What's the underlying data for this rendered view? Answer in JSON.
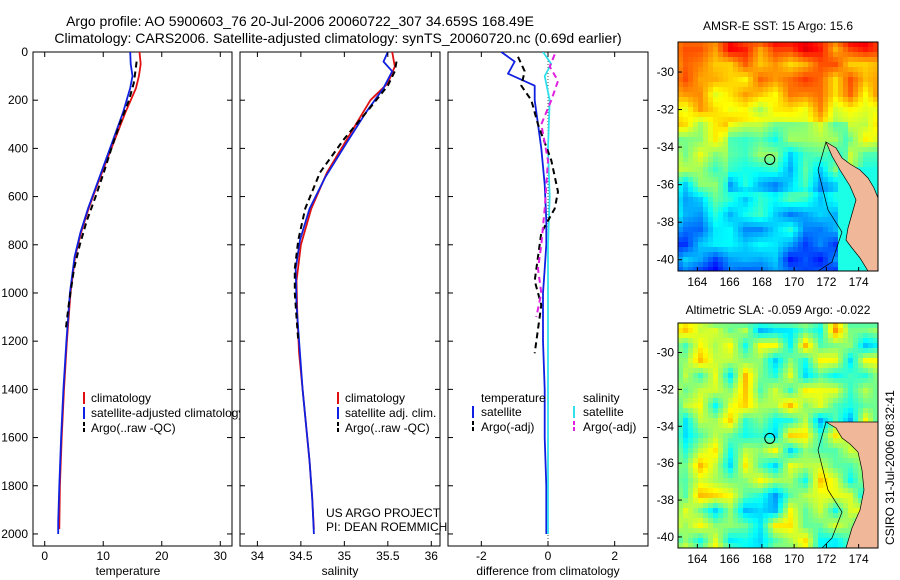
{
  "title_line1": "Argo profile: AO 5900603_76 20-Jul-2006 20060722_307 34.659S 168.49E",
  "title_line2": "Climatology: CARS2006. Satellite-adjusted climatology: synTS_20060720.nc (0.69d earlier)",
  "side_label": "CSIRO 31-Jul-2006 08:32:41",
  "colors": {
    "climatology": "#e01010",
    "satellite": "#1020e0",
    "argo": "#000000",
    "sat_salinity_diff": "#30e0ee",
    "argo_salinity_diff": "#e020e0",
    "land": "#f0b898"
  },
  "chart_data": [
    {
      "type": "line",
      "name": "temperature-profile",
      "xlabel": "temperature",
      "xlim": [
        -2,
        32
      ],
      "ylim": [
        0,
        2050
      ],
      "xticks": [
        0,
        10,
        20,
        30
      ],
      "yticks": [
        0,
        200,
        400,
        600,
        800,
        1000,
        1200,
        1400,
        1600,
        1800,
        2000
      ],
      "series": [
        {
          "name": "climatology",
          "color": "#e01010",
          "x": [
            16.2,
            16.4,
            16.1,
            15.6,
            13.8,
            12.2,
            10.6,
            9.0,
            7.5,
            6.2,
            5.2,
            4.4,
            3.8,
            3.3,
            2.9,
            2.6,
            2.5
          ],
          "y": [
            0,
            50,
            100,
            150,
            250,
            350,
            450,
            550,
            650,
            750,
            850,
            1000,
            1200,
            1400,
            1600,
            1800,
            1980
          ]
        },
        {
          "name": "satellite-adjusted climatology",
          "color": "#1020e0",
          "x": [
            14.6,
            14.7,
            15.0,
            14.6,
            13.4,
            11.9,
            10.4,
            8.9,
            7.4,
            6.1,
            5.1,
            4.3,
            3.7,
            3.2,
            2.8,
            2.5,
            2.3,
            2.3
          ],
          "y": [
            0,
            50,
            100,
            150,
            250,
            350,
            450,
            550,
            650,
            750,
            850,
            1000,
            1200,
            1400,
            1600,
            1800,
            1950,
            2000
          ]
        },
        {
          "name": "Argo(..raw -QC)",
          "color": "#000000",
          "dashed": true,
          "x": [
            15.7,
            15.5,
            15.2,
            14.4,
            12.8,
            11.4,
            10.1,
            8.7,
            7.2,
            6.0,
            5.0,
            4.1,
            3.6
          ],
          "y": [
            40,
            80,
            130,
            200,
            300,
            400,
            500,
            600,
            700,
            800,
            900,
            1050,
            1150
          ]
        }
      ],
      "legend": [
        "climatology",
        "satellite-adjusted climatology",
        "Argo(..raw -QC)"
      ]
    },
    {
      "type": "line",
      "name": "salinity-profile",
      "xlabel": "salinity",
      "xlim": [
        33.8,
        36.1
      ],
      "ylim": [
        0,
        2050
      ],
      "xticks": [
        34,
        34.5,
        35,
        35.5,
        36
      ],
      "series": [
        {
          "name": "climatology",
          "color": "#e01010",
          "x": [
            35.55,
            35.58,
            35.5,
            35.3,
            35.05,
            34.8,
            34.62,
            34.5,
            34.45,
            34.46,
            34.48,
            34.52,
            34.56,
            34.6,
            34.63,
            34.65
          ],
          "y": [
            0,
            60,
            130,
            200,
            350,
            500,
            650,
            800,
            950,
            1100,
            1250,
            1400,
            1550,
            1700,
            1850,
            1980
          ]
        },
        {
          "name": "satellite adj. clim.",
          "color": "#1020e0",
          "x": [
            35.5,
            35.45,
            35.55,
            35.45,
            35.25,
            35.02,
            34.78,
            34.6,
            34.49,
            34.44,
            34.45,
            34.48,
            34.52,
            34.56,
            34.6,
            34.63,
            34.65
          ],
          "y": [
            0,
            40,
            80,
            150,
            250,
            380,
            520,
            650,
            780,
            900,
            1050,
            1200,
            1400,
            1550,
            1700,
            1850,
            2000
          ]
        },
        {
          "name": "Argo(..raw -QC)",
          "color": "#000000",
          "dashed": true,
          "x": [
            35.6,
            35.58,
            35.5,
            35.3,
            35.0,
            34.72,
            34.55,
            34.47,
            34.43,
            34.43,
            34.45,
            34.47
          ],
          "y": [
            40,
            80,
            140,
            230,
            360,
            500,
            650,
            780,
            900,
            1000,
            1100,
            1200
          ]
        }
      ],
      "legend": [
        "climatology",
        "satellite adj. clim.",
        "Argo(..raw -QC)"
      ],
      "annotations": [
        "US ARGO PROJECT",
        "PI: DEAN ROEMMICH"
      ]
    },
    {
      "type": "line",
      "name": "difference-profile",
      "xlabel": "difference from climatology",
      "xlim": [
        -3,
        3
      ],
      "ylim": [
        0,
        2050
      ],
      "xticks": [
        -2,
        0,
        2
      ],
      "series": [
        {
          "name": "satellite temperature",
          "color": "#1020e0",
          "x": [
            -1.4,
            -1.0,
            -1.2,
            -0.4,
            -0.4,
            -0.3,
            -0.2,
            -0.1,
            -0.05,
            -0.05,
            -0.1,
            -0.15,
            -0.15,
            -0.1,
            -0.1,
            -0.05,
            -0.05
          ],
          "y": [
            0,
            40,
            90,
            140,
            200,
            300,
            400,
            550,
            700,
            800,
            900,
            1000,
            1200,
            1400,
            1600,
            1800,
            2000
          ]
        },
        {
          "name": "satellite salinity",
          "color": "#30e0ee",
          "x": [
            -0.15,
            0.1,
            -0.1,
            0.05,
            0.0,
            0.05,
            0.0,
            0.0,
            0.0,
            0.0,
            0.0,
            0.0
          ],
          "y": [
            0,
            50,
            100,
            200,
            400,
            600,
            800,
            1000,
            1200,
            1400,
            1700,
            2000
          ]
        },
        {
          "name": "Argo(-adj) temperature",
          "color": "#000000",
          "dashed": true,
          "x": [
            -0.9,
            -0.7,
            -0.8,
            -0.5,
            -0.3,
            0.1,
            0.3,
            0.2,
            -0.2,
            -0.3,
            -0.4,
            -0.2,
            -0.3,
            -0.4
          ],
          "y": [
            20,
            80,
            140,
            200,
            300,
            450,
            580,
            650,
            750,
            850,
            950,
            1050,
            1150,
            1250
          ]
        },
        {
          "name": "Argo(-adj) salinity",
          "color": "#e020e0",
          "dashed": true,
          "x": [
            0.2,
            0.05,
            0.3,
            0.1,
            -0.2,
            0.0,
            -0.1,
            -0.2,
            -0.3,
            -0.2,
            -0.35
          ],
          "y": [
            10,
            60,
            120,
            200,
            300,
            450,
            650,
            800,
            900,
            1000,
            1100
          ]
        }
      ],
      "legend_groups": [
        {
          "title": "temperature",
          "items": [
            "satellite",
            "Argo(-adj)"
          ]
        },
        {
          "title": "salinity",
          "items": [
            "satellite",
            "Argo(-adj)"
          ]
        }
      ]
    },
    {
      "type": "heatmap",
      "name": "sst-map",
      "title": "AMSR-E SST: 15 Argo: 15.6",
      "xticks": [
        164,
        166,
        168,
        170,
        172,
        174
      ],
      "yticks": [
        -30,
        -32,
        -34,
        -36,
        -38,
        -40
      ],
      "xlim": [
        162.8,
        175.2
      ],
      "ylim": [
        -40.6,
        -28.4
      ],
      "marker": {
        "lon": 168.49,
        "lat": -34.659
      }
    },
    {
      "type": "heatmap",
      "name": "sla-map",
      "title": "Altimetric SLA: -0.059 Argo: -0.022",
      "xticks": [
        164,
        166,
        168,
        170,
        172,
        174
      ],
      "yticks": [
        -30,
        -32,
        -34,
        -36,
        -38,
        -40
      ],
      "xlim": [
        162.8,
        175.2
      ],
      "ylim": [
        -40.6,
        -28.4
      ],
      "marker": {
        "lon": 168.49,
        "lat": -34.659
      }
    }
  ]
}
